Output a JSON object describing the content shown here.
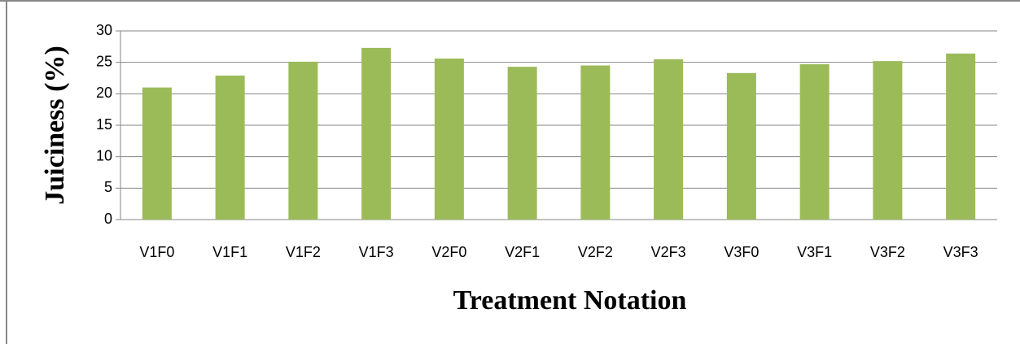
{
  "chart_data": {
    "type": "bar",
    "xlabel": "Treatment Notation",
    "ylabel": "Juiciness (%)",
    "categories": [
      "V1F0",
      "V1F1",
      "V1F2",
      "V1F3",
      "V2F0",
      "V2F1",
      "V2F2",
      "V2F3",
      "V3F0",
      "V3F1",
      "V3F2",
      "V3F3"
    ],
    "values": [
      21.0,
      22.9,
      25.1,
      27.3,
      25.6,
      24.3,
      24.5,
      25.5,
      23.3,
      24.7,
      25.2,
      26.4
    ],
    "color": "#9bbb59",
    "ylim": [
      0,
      30
    ],
    "yticks": [
      0,
      5,
      10,
      15,
      20,
      25,
      30
    ],
    "grid": true
  }
}
